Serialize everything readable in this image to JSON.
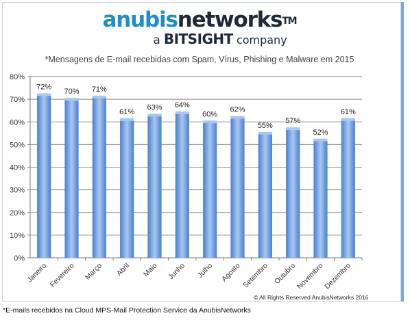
{
  "brand": {
    "name_part1": "anubis",
    "name_part2": "networks",
    "trademark": "TM",
    "tagline_a": "a",
    "tagline_brand": "BITSIGHT",
    "tagline_company": "company"
  },
  "copyright": "© All Rights Reserved AnubisNetworks 2016",
  "footnote": "*E-mails recebidos na Cloud MPS-Mail Protection Service da AnubisNetworks",
  "chart_data": {
    "type": "bar",
    "title": "*Mensagens de E-mail recebidas com Spam, Vírus, Phishing e Malware em 2015",
    "xlabel": "",
    "ylabel": "",
    "categories": [
      "Janeiro",
      "Fevereiro",
      "Março",
      "Abril",
      "Maio",
      "Junho",
      "Julho",
      "Agosto",
      "Setembro",
      "Outubro",
      "Novembro",
      "Dezembro"
    ],
    "values": [
      72,
      70,
      71,
      61,
      63,
      64,
      60,
      62,
      55,
      57,
      52,
      61
    ],
    "data_labels": [
      "72%",
      "70%",
      "71%",
      "61%",
      "63%",
      "64%",
      "60%",
      "62%",
      "55%",
      "57%",
      "52%",
      "61%"
    ],
    "yticks": [
      "0%",
      "10%",
      "20%",
      "30%",
      "40%",
      "50%",
      "60%",
      "70%",
      "80%"
    ],
    "ylim": [
      0,
      80
    ],
    "grid": true,
    "bar_color_light": "#a9c8f0",
    "bar_color_dark": "#4a7fd0"
  }
}
